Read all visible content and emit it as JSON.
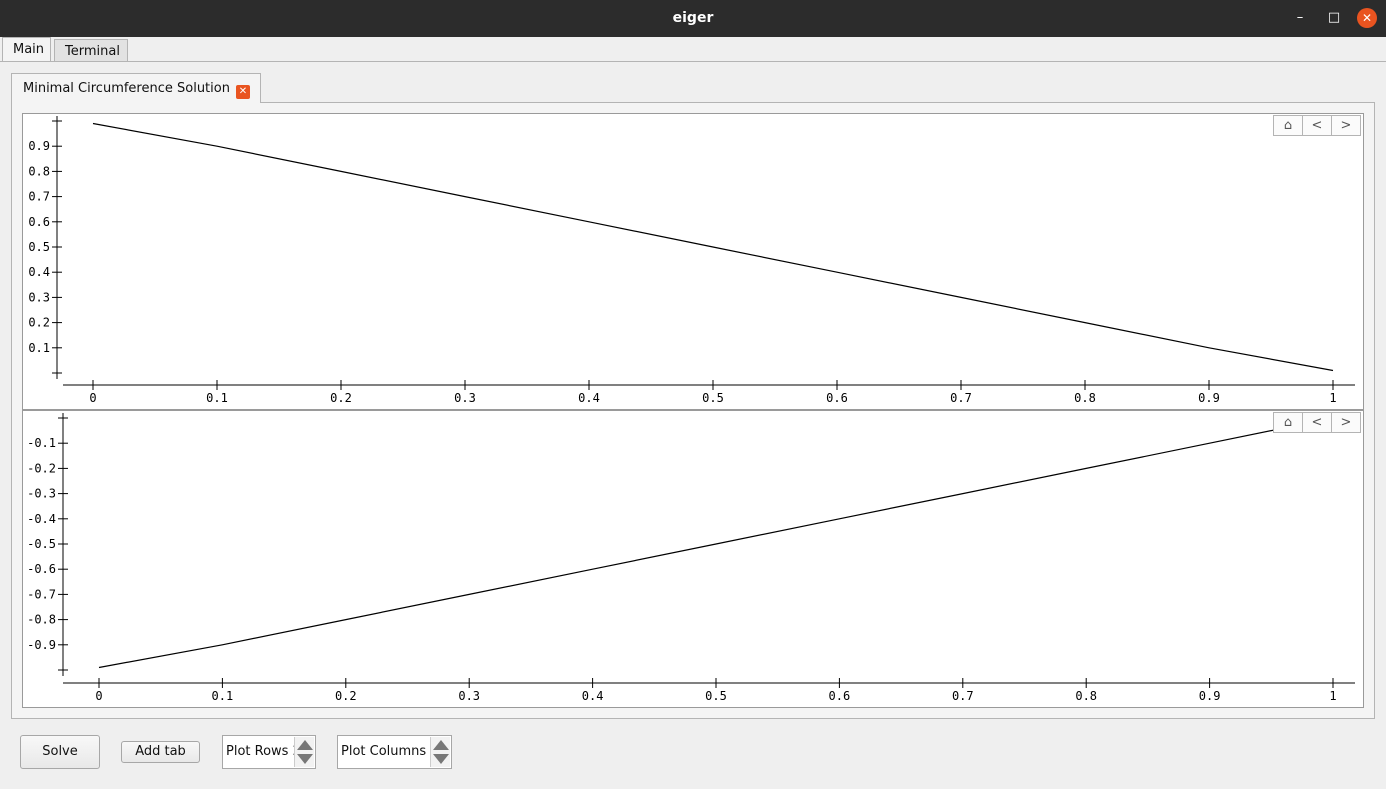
{
  "window": {
    "title": "eiger"
  },
  "main_tabs": [
    {
      "label": "Main"
    },
    {
      "label": "Terminal"
    }
  ],
  "inner_tab": {
    "label": "Minimal Circumference Solution"
  },
  "plot_toolbar": {
    "home": "⌂",
    "back": "<",
    "forward": ">"
  },
  "chart_data": [
    {
      "type": "line",
      "x": [
        0,
        0.1,
        0.2,
        0.3,
        0.4,
        0.5,
        0.6,
        0.7,
        0.8,
        0.9,
        1
      ],
      "y": [
        0.99,
        0.9,
        0.8,
        0.7,
        0.6,
        0.5,
        0.4,
        0.3,
        0.2,
        0.1,
        0.01
      ],
      "xticks": [
        "0",
        "0.1",
        "0.2",
        "0.3",
        "0.4",
        "0.5",
        "0.6",
        "0.7",
        "0.8",
        "0.9",
        "1"
      ],
      "yticks": [
        "0.1",
        "0.2",
        "0.3",
        "0.4",
        "0.5",
        "0.6",
        "0.7",
        "0.8",
        "0.9"
      ],
      "xlim": [
        0,
        1
      ],
      "ylim": [
        0,
        1
      ]
    },
    {
      "type": "line",
      "x": [
        0,
        0.1,
        0.2,
        0.3,
        0.4,
        0.5,
        0.6,
        0.7,
        0.8,
        0.9,
        0.96
      ],
      "y": [
        -0.99,
        -0.9,
        -0.8,
        -0.7,
        -0.6,
        -0.5,
        -0.4,
        -0.3,
        -0.2,
        -0.1,
        -0.04
      ],
      "xticks": [
        "0",
        "0.1",
        "0.2",
        "0.3",
        "0.4",
        "0.5",
        "0.6",
        "0.7",
        "0.8",
        "0.9",
        "1"
      ],
      "yticks": [
        "-0.1",
        "-0.2",
        "-0.3",
        "-0.4",
        "-0.5",
        "-0.6",
        "-0.7",
        "-0.8",
        "-0.9"
      ],
      "xlim": [
        0,
        1
      ],
      "ylim": [
        -1,
        0
      ]
    }
  ],
  "controls": {
    "solve_label": "Solve",
    "add_tab_label": "Add tab",
    "plot_rows_label": "Plot Rows",
    "plot_rows_value": "2",
    "plot_columns_label": "Plot Columns",
    "plot_columns_value": "1"
  }
}
